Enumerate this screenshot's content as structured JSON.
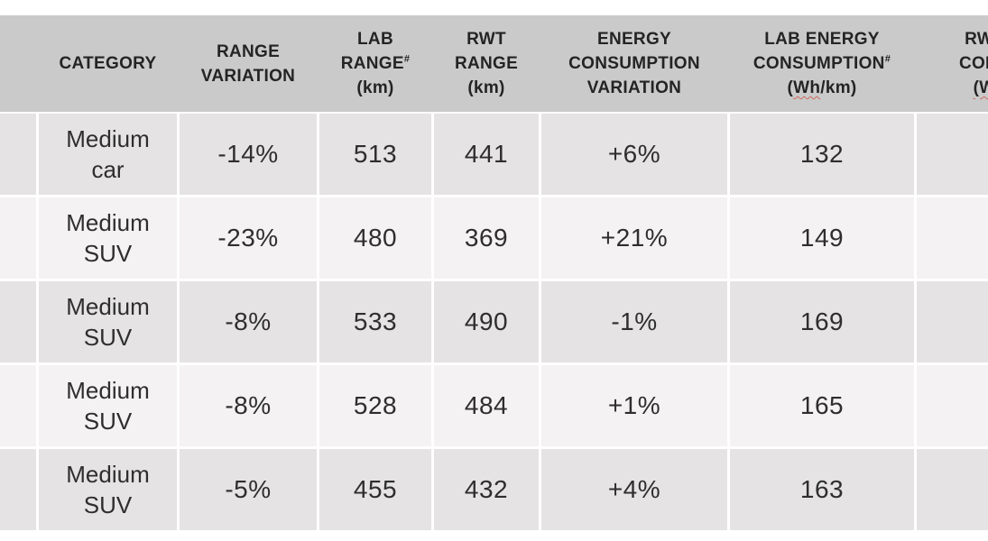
{
  "colors": {
    "header_bg": "#cacaca",
    "row_odd_bg": "#e5e3e3",
    "row_even_bg": "#f4f2f2",
    "gridline": "#ffffff",
    "text": "#2e2e2e",
    "spellcheck_squiggle": "#cf6a5e"
  },
  "table": {
    "header": {
      "category": {
        "line1": "CATEGORY"
      },
      "range_variation": {
        "line1": "RANGE",
        "line2": "VARIATION"
      },
      "lab_range": {
        "line1": "LAB",
        "line2": "RANGE",
        "sup": "#",
        "unit": "(km)"
      },
      "rwt_range": {
        "line1": "RWT",
        "line2": "RANGE",
        "unit": "(km)"
      },
      "energy_consumption_variation": {
        "line1": "ENERGY",
        "line2": "CONSUMPTION",
        "line3": "VARIATION"
      },
      "lab_energy_consumption": {
        "line1": "LAB ENERGY",
        "line2": "CONSUMPTION",
        "sup": "#",
        "unit_open": "(",
        "unit_wavy": "Wh",
        "unit_rest": "/km)"
      },
      "rwt_consumption_cut": {
        "line1": "RWT",
        "line2": "CONS",
        "line3_wavy": "(W"
      }
    },
    "rows": [
      {
        "category": "Medium car",
        "range_variation": "-14%",
        "lab_range": "513",
        "rwt_range": "441",
        "energy_consumption_variation": "+6%",
        "lab_energy_consumption": "132",
        "rwt_consumption": ""
      },
      {
        "category": "Medium SUV",
        "range_variation": "-23%",
        "lab_range": "480",
        "rwt_range": "369",
        "energy_consumption_variation": "+21%",
        "lab_energy_consumption": "149",
        "rwt_consumption": ""
      },
      {
        "category": "Medium SUV",
        "range_variation": "-8%",
        "lab_range": "533",
        "rwt_range": "490",
        "energy_consumption_variation": "-1%",
        "lab_energy_consumption": "169",
        "rwt_consumption": ""
      },
      {
        "category": "Medium SUV",
        "range_variation": "-8%",
        "lab_range": "528",
        "rwt_range": "484",
        "energy_consumption_variation": "+1%",
        "lab_energy_consumption": "165",
        "rwt_consumption": ""
      },
      {
        "category": "Medium SUV",
        "range_variation": "-5%",
        "lab_range": "455",
        "rwt_range": "432",
        "energy_consumption_variation": "+4%",
        "lab_energy_consumption": "163",
        "rwt_consumption": ""
      }
    ]
  }
}
